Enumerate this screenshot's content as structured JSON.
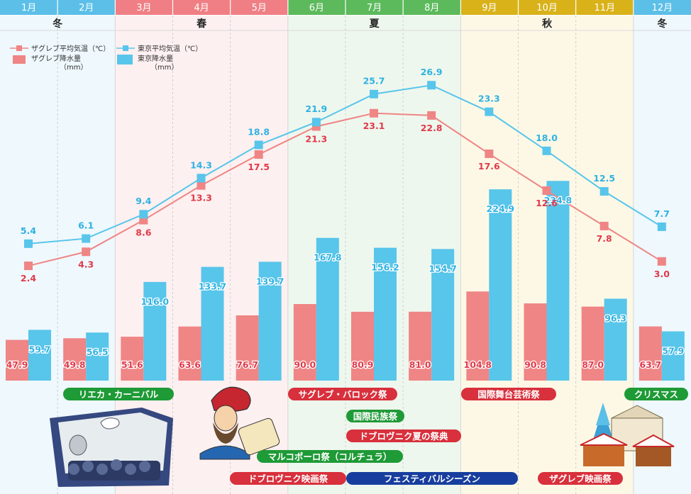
{
  "chart_data": {
    "type": "bar+line",
    "months": [
      "1月",
      "2月",
      "3月",
      "4月",
      "5月",
      "6月",
      "7月",
      "8月",
      "9月",
      "10月",
      "11月",
      "12月"
    ],
    "seasons": [
      {
        "label": "冬",
        "start": 0,
        "end": 2
      },
      {
        "label": "春",
        "start": 2,
        "end": 5
      },
      {
        "label": "夏",
        "start": 5,
        "end": 8
      },
      {
        "label": "秋",
        "start": 8,
        "end": 11
      },
      {
        "label": "冬",
        "start": 11,
        "end": 12
      }
    ],
    "legend": {
      "zagreb_temp": "ザグレブ平均気温（℃）",
      "tokyo_temp": "東京平均気温（℃）",
      "zagreb_rain": "ザグレブ降水量",
      "zagreb_rain_unit": "（mm）",
      "tokyo_rain": "東京降水量",
      "tokyo_rain_unit": "（mm）"
    },
    "series": [
      {
        "name": "ザグレブ平均気温",
        "kind": "line",
        "values": [
          2.4,
          4.3,
          8.6,
          13.3,
          17.5,
          21.3,
          23.1,
          22.8,
          17.6,
          12.6,
          7.8,
          3.0
        ]
      },
      {
        "name": "東京平均気温",
        "kind": "line",
        "values": [
          5.4,
          6.1,
          9.4,
          14.3,
          18.8,
          21.9,
          25.7,
          26.9,
          23.3,
          18.0,
          12.5,
          7.7
        ]
      },
      {
        "name": "ザグレブ降水量",
        "kind": "bar",
        "values": [
          47.9,
          49.8,
          51.6,
          63.6,
          76.7,
          90.0,
          80.9,
          81.0,
          104.8,
          90.8,
          87.0,
          63.7
        ]
      },
      {
        "name": "東京降水量",
        "kind": "bar",
        "values": [
          59.7,
          56.5,
          116.0,
          133.7,
          139.7,
          167.8,
          156.2,
          154.7,
          224.9,
          234.8,
          96.3,
          57.9
        ]
      }
    ],
    "events": [
      {
        "label": "リエカ・カーニバル",
        "color": "green"
      },
      {
        "label": "サグレブ・バロック祭",
        "color": "red"
      },
      {
        "label": "国際民族祭",
        "color": "green"
      },
      {
        "label": "ドブロヴニク夏の祭典",
        "color": "red"
      },
      {
        "label": "マルコポーロ祭（コルチュラ）",
        "color": "green"
      },
      {
        "label": "ドブロヴニク映画祭",
        "color": "red"
      },
      {
        "label": "フェスティバルシーズン",
        "color": "blue"
      },
      {
        "label": "国際舞台芸術祭",
        "color": "red"
      },
      {
        "label": "ザグレブ映画祭",
        "color": "red"
      },
      {
        "label": "クリスマス",
        "color": "green"
      }
    ],
    "colors": {
      "pink": "#ef8585",
      "blue": "#58c5ea",
      "pinkText": "#e03a4a",
      "blueText": "#2fb2e2",
      "hdrWinter": "#5bbfe8",
      "hdrSpring": "#ef7f84",
      "hdrSummer": "#5cba5c",
      "hdrAutumn": "#d9b21a",
      "bgWinter": "#eef8fd",
      "bgSpring": "#fdf0f0",
      "bgSummer": "#eef7ee",
      "bgAutumn": "#fdf8e6",
      "evRed": "#d8303c",
      "evGreen": "#1e9a36",
      "evBlue": "#173e9e"
    }
  }
}
